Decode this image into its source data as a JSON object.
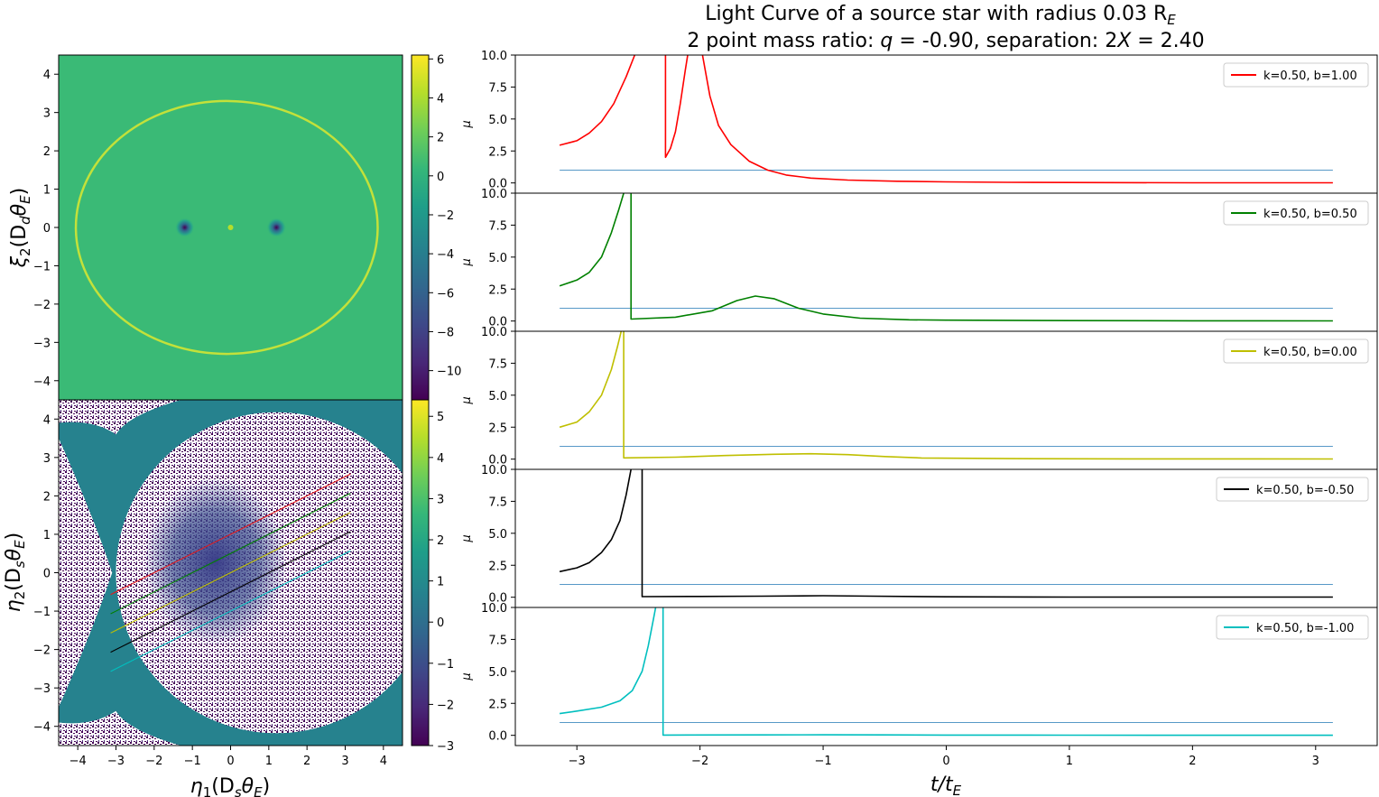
{
  "figure": {
    "title_line1": "Light Curve of a source star with radius 0.03 R",
    "title_line1_sub": "E",
    "title_line2_parts": [
      "2 point mass ratio: ",
      "q",
      " = -0.90, separation: 2",
      "X",
      " = 2.40"
    ]
  },
  "colors": {
    "viridis": [
      "#440154",
      "#482878",
      "#3e4989",
      "#31688e",
      "#26828e",
      "#1f9e89",
      "#35b779",
      "#6ece58",
      "#b5de2b",
      "#fde725"
    ],
    "lens_background": "#3aba76",
    "source_background": "#26828e",
    "source_dots": "#440154",
    "reference_line": "#1f77b4"
  },
  "chart_data": [
    {
      "type": "heatmap",
      "id": "lens_plane",
      "xlabel": "",
      "ylabel_main": "ξ",
      "ylabel_sub1": "2",
      "ylabel_paren": "(D",
      "ylabel_sub2": "d",
      "ylabel_rest": "θ",
      "ylabel_sub3": "E",
      "ylabel_close": ")",
      "xlim": [
        -4.5,
        4.5
      ],
      "ylim": [
        -4.5,
        4.5
      ],
      "yticks": [
        4,
        3,
        2,
        1,
        0,
        -1,
        -2,
        -3,
        -4
      ],
      "ytick_labels": [
        "4",
        "3",
        "2",
        "1",
        "0",
        "−1",
        "−2",
        "−3",
        "−4"
      ],
      "critical_curve": {
        "cx": -0.1,
        "cy": 0.0,
        "rx": 3.95,
        "ry": 3.3
      },
      "point_masses": [
        {
          "x": -1.2,
          "y": 0.0
        },
        {
          "x": 1.2,
          "y": 0.0
        }
      ],
      "center_point": {
        "x": 0.0,
        "y": 0.0
      },
      "colorbar": {
        "range": [
          -11.5,
          6.2
        ],
        "ticks": [
          6,
          4,
          2,
          0,
          -2,
          -4,
          -6,
          -8,
          -10
        ],
        "tick_labels": [
          "6",
          "4",
          "2",
          "0",
          "−2",
          "−4",
          "−6",
          "−8",
          "−10"
        ]
      }
    },
    {
      "type": "heatmap",
      "id": "source_plane",
      "xlabel_main": "η",
      "xlabel_sub1": "1",
      "xlabel_paren": "(D",
      "xlabel_sub2": "s",
      "xlabel_rest": "θ",
      "xlabel_sub3": "E",
      "xlabel_close": ")",
      "ylabel_main": "η",
      "ylabel_sub1": "2",
      "ylabel_paren": "(D",
      "ylabel_sub2": "s",
      "ylabel_rest": "θ",
      "ylabel_sub3": "E",
      "ylabel_close": ")",
      "xlim": [
        -4.5,
        4.5
      ],
      "ylim": [
        -4.5,
        4.5
      ],
      "xticks": [
        -4,
        -3,
        -2,
        -1,
        0,
        1,
        2,
        3,
        4
      ],
      "xtick_labels": [
        "−4",
        "−3",
        "−2",
        "−1",
        "0",
        "1",
        "2",
        "3",
        "4"
      ],
      "yticks": [
        4,
        3,
        2,
        1,
        0,
        -1,
        -2,
        -3,
        -4
      ],
      "ytick_labels": [
        "4",
        "3",
        "2",
        "1",
        "0",
        "−1",
        "−2",
        "−3",
        "−4"
      ],
      "caustic_circle": {
        "cx": 1.2,
        "cy": 0.0,
        "r": 4.2
      },
      "source_tracks": [
        {
          "color": "#e41a1c",
          "x0": -3.14,
          "y0": -0.57,
          "x1": 3.14,
          "y1": 2.57
        },
        {
          "color": "#008000",
          "x0": -3.14,
          "y0": -1.07,
          "x1": 3.14,
          "y1": 2.07
        },
        {
          "color": "#bfbf00",
          "x0": -3.14,
          "y0": -1.57,
          "x1": 3.14,
          "y1": 1.57
        },
        {
          "color": "#000000",
          "x0": -3.14,
          "y0": -2.07,
          "x1": 3.14,
          "y1": 1.07
        },
        {
          "color": "#00bfbf",
          "x0": -3.14,
          "y0": -2.57,
          "x1": 3.14,
          "y1": 0.57
        }
      ],
      "colorbar": {
        "range": [
          -3,
          5.4
        ],
        "ticks": [
          5,
          4,
          3,
          2,
          1,
          0,
          -1,
          -2,
          -3
        ],
        "tick_labels": [
          "5",
          "4",
          "3",
          "2",
          "1",
          "0",
          "−1",
          "−2",
          "−3"
        ]
      }
    },
    {
      "type": "line",
      "id": "light_curves",
      "xlabel_main": "t",
      "xlabel_mid": "/t",
      "xlabel_sub": "E",
      "ylabel": "μ",
      "xlim": [
        -3.5,
        3.5
      ],
      "ylim": [
        -0.8,
        10.0
      ],
      "xticks": [
        -3,
        -2,
        -1,
        0,
        1,
        2,
        3
      ],
      "xtick_labels": [
        "−3",
        "−2",
        "−1",
        "0",
        "1",
        "2",
        "3"
      ],
      "yticks": [
        0.0,
        2.5,
        5.0,
        7.5,
        10.0
      ],
      "ytick_labels": [
        "0.0",
        "2.5",
        "5.0",
        "7.5",
        "10.0"
      ],
      "reference_level": 1.0,
      "series": [
        {
          "name": "k=0.50, b=1.00",
          "color": "#ff0000",
          "segments": [
            [
              [
                -3.14,
                2.95
              ],
              [
                -3.0,
                3.3
              ],
              [
                -2.9,
                3.9
              ],
              [
                -2.8,
                4.8
              ],
              [
                -2.7,
                6.2
              ],
              [
                -2.6,
                8.3
              ],
              [
                -2.53,
                10.0
              ]
            ],
            [
              [
                -2.28,
                10.0
              ],
              [
                -2.28,
                2.0
              ],
              [
                -2.24,
                2.7
              ],
              [
                -2.2,
                4.0
              ],
              [
                -2.16,
                6.2
              ],
              [
                -2.12,
                8.8
              ],
              [
                -2.1,
                10.0
              ]
            ],
            [
              [
                -1.98,
                10.0
              ],
              [
                -1.92,
                6.8
              ],
              [
                -1.85,
                4.5
              ],
              [
                -1.75,
                3.0
              ],
              [
                -1.6,
                1.7
              ],
              [
                -1.45,
                1.0
              ],
              [
                -1.3,
                0.62
              ],
              [
                -1.1,
                0.38
              ],
              [
                -0.8,
                0.22
              ],
              [
                -0.4,
                0.13
              ],
              [
                0.0,
                0.08
              ],
              [
                0.5,
                0.05
              ],
              [
                1.0,
                0.03
              ],
              [
                2.0,
                0.015
              ],
              [
                3.14,
                0.01
              ]
            ]
          ]
        },
        {
          "name": "k=0.50, b=0.50",
          "color": "#008000",
          "segments": [
            [
              [
                -3.14,
                2.75
              ],
              [
                -3.0,
                3.2
              ],
              [
                -2.9,
                3.8
              ],
              [
                -2.8,
                5.0
              ],
              [
                -2.72,
                6.9
              ],
              [
                -2.66,
                8.7
              ],
              [
                -2.62,
                10.0
              ]
            ],
            [
              [
                -2.56,
                10.0
              ],
              [
                -2.56,
                0.15
              ],
              [
                -2.2,
                0.3
              ],
              [
                -1.9,
                0.8
              ],
              [
                -1.7,
                1.6
              ],
              [
                -1.55,
                1.95
              ],
              [
                -1.4,
                1.75
              ],
              [
                -1.2,
                1.0
              ],
              [
                -1.0,
                0.55
              ],
              [
                -0.7,
                0.22
              ],
              [
                -0.3,
                0.1
              ],
              [
                0.0,
                0.07
              ],
              [
                1.0,
                0.03
              ],
              [
                2.0,
                0.02
              ],
              [
                3.14,
                0.01
              ]
            ]
          ]
        },
        {
          "name": "k=0.50, b=0.00",
          "color": "#bfbf00",
          "segments": [
            [
              [
                -3.14,
                2.5
              ],
              [
                -3.0,
                2.9
              ],
              [
                -2.9,
                3.7
              ],
              [
                -2.8,
                5.0
              ],
              [
                -2.72,
                7.0
              ],
              [
                -2.67,
                8.8
              ],
              [
                -2.64,
                10.0
              ]
            ],
            [
              [
                -2.62,
                10.0
              ],
              [
                -2.62,
                0.1
              ],
              [
                -2.2,
                0.15
              ],
              [
                -1.8,
                0.28
              ],
              [
                -1.4,
                0.38
              ],
              [
                -1.1,
                0.42
              ],
              [
                -0.8,
                0.35
              ],
              [
                -0.5,
                0.2
              ],
              [
                -0.2,
                0.09
              ],
              [
                0.5,
                0.04
              ],
              [
                1.5,
                0.02
              ],
              [
                3.14,
                0.01
              ]
            ]
          ]
        },
        {
          "name": "k=0.50, b=-0.50",
          "color": "#000000",
          "segments": [
            [
              [
                -3.14,
                2.0
              ],
              [
                -3.0,
                2.3
              ],
              [
                -2.9,
                2.7
              ],
              [
                -2.8,
                3.5
              ],
              [
                -2.72,
                4.5
              ],
              [
                -2.65,
                6.0
              ],
              [
                -2.6,
                8.0
              ],
              [
                -2.56,
                10.0
              ]
            ],
            [
              [
                -2.47,
                10.0
              ],
              [
                -2.47,
                0.05
              ],
              [
                -2.0,
                0.06
              ],
              [
                -1.5,
                0.08
              ],
              [
                -1.0,
                0.12
              ],
              [
                -0.6,
                0.08
              ],
              [
                0.0,
                0.03
              ],
              [
                1.0,
                0.015
              ],
              [
                3.14,
                0.01
              ]
            ]
          ]
        },
        {
          "name": "k=0.50, b=-1.00",
          "color": "#00bfbf",
          "segments": [
            [
              [
                -3.14,
                1.7
              ],
              [
                -3.0,
                1.9
              ],
              [
                -2.8,
                2.2
              ],
              [
                -2.65,
                2.7
              ],
              [
                -2.55,
                3.5
              ],
              [
                -2.47,
                5.0
              ],
              [
                -2.42,
                7.0
              ],
              [
                -2.38,
                9.0
              ],
              [
                -2.36,
                10.0
              ]
            ],
            [
              [
                -2.3,
                10.0
              ],
              [
                -2.3,
                0.02
              ],
              [
                -1.5,
                0.03
              ],
              [
                -1.0,
                0.04
              ],
              [
                -0.5,
                0.03
              ],
              [
                0.0,
                0.02
              ],
              [
                1.0,
                0.01
              ],
              [
                3.14,
                0.005
              ]
            ]
          ]
        }
      ]
    }
  ]
}
